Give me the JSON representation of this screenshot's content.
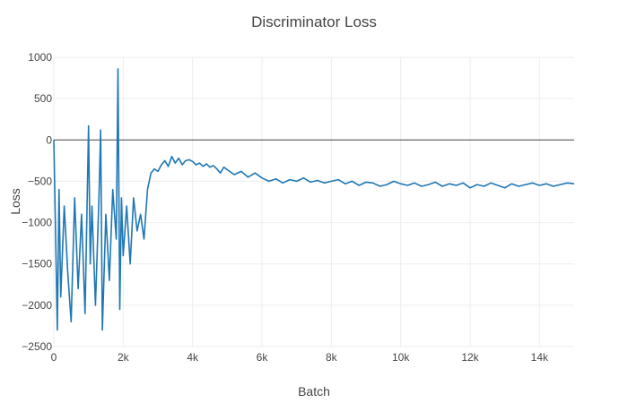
{
  "chart_data": {
    "type": "line",
    "title": "Discriminator Loss",
    "xlabel": "Batch",
    "ylabel": "Loss",
    "xlim": [
      0,
      15000
    ],
    "ylim": [
      -2500,
      1000
    ],
    "x_ticks": [
      0,
      2000,
      4000,
      6000,
      8000,
      10000,
      12000,
      14000
    ],
    "x_tick_labels": [
      "0",
      "2k",
      "4k",
      "6k",
      "8k",
      "10k",
      "12k",
      "14k"
    ],
    "y_ticks": [
      1000,
      500,
      0,
      -500,
      -1000,
      -1500,
      -2000,
      -2500
    ],
    "y_tick_labels": [
      "1000",
      "500",
      "0",
      "−500",
      "−1000",
      "−1500",
      "−2000",
      "−2500"
    ],
    "grid": true,
    "line_color": "#1f77b4",
    "series": [
      {
        "name": "Discriminator Loss",
        "x": [
          0,
          50,
          100,
          150,
          200,
          300,
          400,
          500,
          600,
          700,
          800,
          900,
          950,
          1000,
          1050,
          1100,
          1200,
          1300,
          1350,
          1400,
          1500,
          1600,
          1700,
          1800,
          1850,
          1900,
          1950,
          2000,
          2100,
          2200,
          2300,
          2400,
          2500,
          2600,
          2700,
          2800,
          2900,
          3000,
          3100,
          3200,
          3300,
          3400,
          3500,
          3600,
          3700,
          3800,
          3900,
          4000,
          4100,
          4200,
          4300,
          4400,
          4500,
          4600,
          4700,
          4800,
          4900,
          5000,
          5200,
          5400,
          5600,
          5800,
          6000,
          6200,
          6400,
          6600,
          6800,
          7000,
          7200,
          7400,
          7600,
          7800,
          8000,
          8200,
          8400,
          8600,
          8800,
          9000,
          9200,
          9400,
          9600,
          9800,
          10000,
          10200,
          10400,
          10600,
          10800,
          11000,
          11200,
          11400,
          11600,
          11800,
          12000,
          12200,
          12400,
          12600,
          12800,
          13000,
          13200,
          13400,
          13600,
          13800,
          14000,
          14200,
          14400,
          14600,
          14800,
          15000
        ],
        "y": [
          0,
          -1100,
          -2300,
          -600,
          -1900,
          -800,
          -1600,
          -2200,
          -700,
          -1800,
          -900,
          -2100,
          -1000,
          170,
          -1500,
          -800,
          -2000,
          -700,
          120,
          -2300,
          -900,
          -1700,
          -600,
          -1200,
          860,
          -2050,
          -700,
          -1400,
          -800,
          -1500,
          -700,
          -1100,
          -900,
          -1200,
          -600,
          -400,
          -350,
          -380,
          -300,
          -250,
          -320,
          -200,
          -280,
          -220,
          -300,
          -250,
          -240,
          -260,
          -300,
          -280,
          -320,
          -290,
          -330,
          -310,
          -350,
          -400,
          -330,
          -360,
          -420,
          -380,
          -450,
          -400,
          -460,
          -500,
          -470,
          -520,
          -480,
          -500,
          -460,
          -510,
          -490,
          -520,
          -500,
          -480,
          -530,
          -500,
          -550,
          -510,
          -520,
          -560,
          -540,
          -500,
          -530,
          -550,
          -520,
          -560,
          -540,
          -510,
          -560,
          -530,
          -550,
          -520,
          -580,
          -540,
          -560,
          -520,
          -550,
          -580,
          -530,
          -560,
          -540,
          -520,
          -550,
          -530,
          -560,
          -540,
          -520,
          -530
        ]
      }
    ]
  }
}
